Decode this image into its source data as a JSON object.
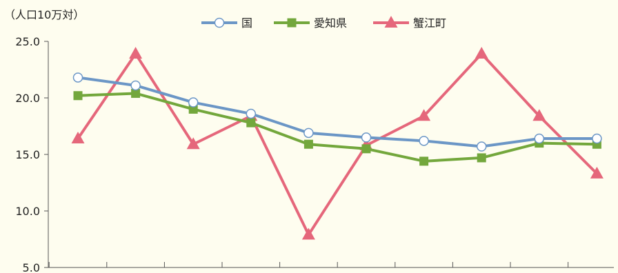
{
  "chart_data": {
    "type": "line",
    "unit_label": "（人口10万対）",
    "ylim": [
      5.0,
      25.0
    ],
    "yticks": [
      "25.0",
      "20.0",
      "15.0",
      "10.0",
      "5.0"
    ],
    "ytick_values": [
      25,
      20,
      15,
      10,
      5
    ],
    "categories": [
      "",
      "",
      "",
      "",
      "",
      "",
      "",
      "",
      "",
      ""
    ],
    "series": [
      {
        "name": "国",
        "color": "#6b96c6",
        "marker": "circle",
        "values": [
          21.8,
          21.1,
          19.6,
          18.6,
          16.9,
          16.5,
          16.2,
          15.7,
          16.4,
          16.4
        ]
      },
      {
        "name": "愛知県",
        "color": "#73a73c",
        "marker": "square",
        "values": [
          20.2,
          20.4,
          19.0,
          17.8,
          15.9,
          15.5,
          14.4,
          14.7,
          16.0,
          15.9
        ]
      },
      {
        "name": "蟹江町",
        "color": "#e5677b",
        "marker": "triangle",
        "values": [
          16.4,
          23.9,
          15.9,
          18.4,
          7.9,
          15.8,
          18.4,
          23.9,
          18.4,
          13.3
        ]
      }
    ],
    "grid": false,
    "legend_position": "top-center"
  }
}
